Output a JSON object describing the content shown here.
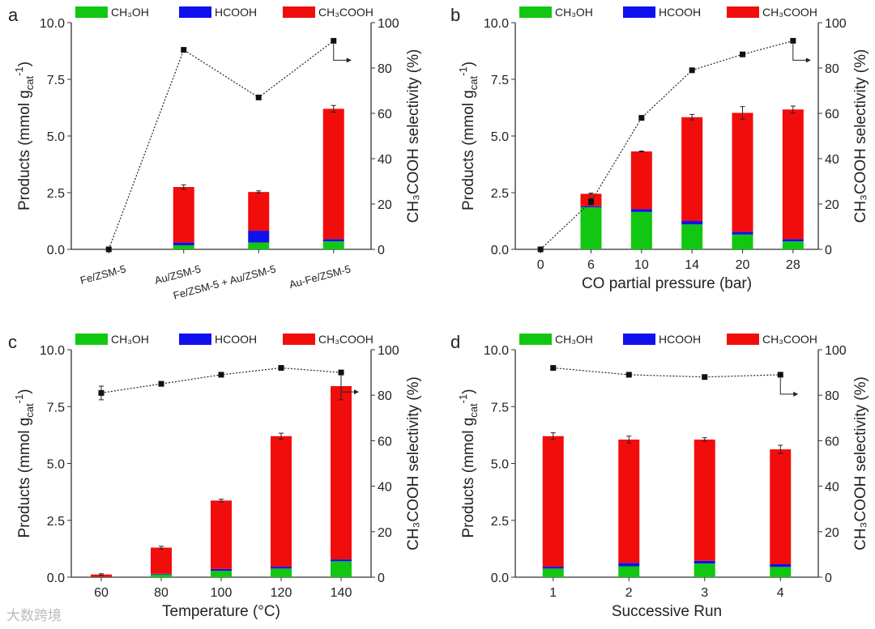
{
  "chart_data": [
    {
      "panel": "a",
      "type": "bar",
      "categories": [
        "Fe/ZSM-5",
        "Au/ZSM-5",
        "Fe/ZSM-5 + Au/ZSM-5",
        "Au-Fe/ZSM-5"
      ],
      "xlabel": "",
      "ylabel": {
        "main": "Products (mmol g",
        "sub": "cat",
        "sup": "-1",
        "end": ")"
      },
      "y2label": "CH₃COOH selectivity (%)",
      "ylim": [
        0,
        10
      ],
      "y2lim": [
        0,
        100
      ],
      "yticks": [
        "0.0",
        "2.5",
        "5.0",
        "7.5",
        "10.0"
      ],
      "y2ticks": [
        "0",
        "20",
        "40",
        "60",
        "80",
        "100"
      ],
      "series": [
        {
          "name": "CH₃OH",
          "values": [
            0,
            0.18,
            0.3,
            0.35
          ]
        },
        {
          "name": "HCOOH",
          "values": [
            0,
            0.12,
            0.52,
            0.1
          ]
        },
        {
          "name": "CH₃COOH",
          "values": [
            0,
            2.45,
            1.71,
            5.75
          ]
        }
      ],
      "total_error": [
        0,
        0.1,
        0.05,
        0.15
      ],
      "selectivity": [
        0,
        88,
        67,
        92
      ],
      "selectivity_error": [
        0,
        1,
        0,
        0
      ]
    },
    {
      "panel": "b",
      "type": "bar",
      "categories": [
        "0",
        "6",
        "10",
        "14",
        "20",
        "28"
      ],
      "xlabel": "CO partial pressure (bar)",
      "ylabel": {
        "main": "Products (mmol g",
        "sub": "cat",
        "sup": "-1",
        "end": ")"
      },
      "y2label": "CH₃COOH selectivity (%)",
      "ylim": [
        0,
        10
      ],
      "y2lim": [
        0,
        100
      ],
      "yticks": [
        "0.0",
        "2.5",
        "5.0",
        "7.5",
        "10.0"
      ],
      "y2ticks": [
        "0",
        "20",
        "40",
        "60",
        "80",
        "100"
      ],
      "series": [
        {
          "name": "CH₃OH",
          "values": [
            0,
            1.85,
            1.65,
            1.1,
            0.65,
            0.35
          ]
        },
        {
          "name": "HCOOH",
          "values": [
            0,
            0.05,
            0.12,
            0.15,
            0.12,
            0.1
          ]
        },
        {
          "name": "CH₃COOH",
          "values": [
            0,
            0.55,
            2.55,
            4.58,
            5.25,
            5.72
          ]
        }
      ],
      "total_error": [
        0,
        0.03,
        0.02,
        0.12,
        0.28,
        0.15
      ],
      "selectivity": [
        0,
        21,
        58,
        79,
        86,
        92
      ],
      "selectivity_error": [
        0,
        1.5,
        1,
        0,
        0,
        0
      ]
    },
    {
      "panel": "c",
      "type": "bar",
      "categories": [
        "60",
        "80",
        "100",
        "120",
        "140"
      ],
      "xlabel": "Temperature (°C)",
      "ylabel": {
        "main": "Products (mmol g",
        "sub": "cat",
        "sup": "-1",
        "end": ")"
      },
      "y2label": "CH₃COOH selectivity (%)",
      "ylim": [
        0,
        10
      ],
      "y2lim": [
        0,
        100
      ],
      "yticks": [
        "0.0",
        "2.5",
        "5.0",
        "7.5",
        "10.0"
      ],
      "y2ticks": [
        "0",
        "20",
        "40",
        "60",
        "80",
        "100"
      ],
      "series": [
        {
          "name": "CH₃OH",
          "values": [
            0.01,
            0.12,
            0.28,
            0.38,
            0.7
          ]
        },
        {
          "name": "HCOOH",
          "values": [
            0.0,
            0.03,
            0.08,
            0.08,
            0.08
          ]
        },
        {
          "name": "CH₃COOH",
          "values": [
            0.11,
            1.15,
            3.01,
            5.74,
            7.62
          ]
        }
      ],
      "total_error": [
        0.03,
        0.06,
        0.06,
        0.13,
        0.6
      ],
      "selectivity": [
        81,
        85,
        89,
        92,
        90
      ],
      "selectivity_error": [
        3,
        0,
        0,
        0,
        0
      ]
    },
    {
      "panel": "d",
      "type": "bar",
      "categories": [
        "1",
        "2",
        "3",
        "4"
      ],
      "xlabel": "Successive Run",
      "ylabel": {
        "main": "Products (mmol g",
        "sub": "cat",
        "sup": "-1",
        "end": ")"
      },
      "y2label": "CH₃COOH selectivity (%)",
      "ylim": [
        0,
        10
      ],
      "y2lim": [
        0,
        100
      ],
      "yticks": [
        "0.0",
        "2.5",
        "5.0",
        "7.5",
        "10.0"
      ],
      "y2ticks": [
        "0",
        "20",
        "40",
        "60",
        "80",
        "100"
      ],
      "series": [
        {
          "name": "CH₃OH",
          "values": [
            0.38,
            0.48,
            0.6,
            0.45
          ]
        },
        {
          "name": "HCOOH",
          "values": [
            0.08,
            0.15,
            0.12,
            0.12
          ]
        },
        {
          "name": "CH₃COOH",
          "values": [
            5.74,
            5.42,
            5.33,
            5.05
          ]
        }
      ],
      "total_error": [
        0.15,
        0.15,
        0.08,
        0.18
      ],
      "selectivity": [
        92,
        89,
        88,
        89
      ],
      "selectivity_error": [
        0,
        0,
        0,
        0
      ]
    }
  ],
  "colors": {
    "CH3OH": "#11c711",
    "HCOOH": "#1010ee",
    "CH3COOH": "#f20d0d"
  },
  "watermark": "大数跨境"
}
